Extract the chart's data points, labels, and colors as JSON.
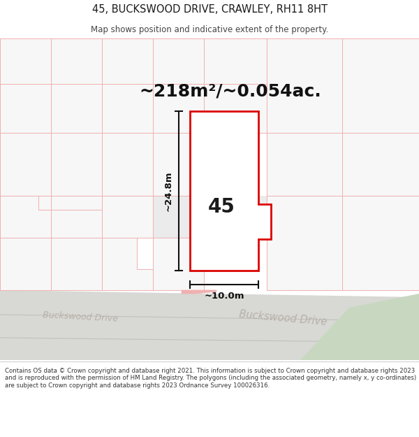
{
  "title_line1": "45, BUCKSWOOD DRIVE, CRAWLEY, RH11 8HT",
  "title_line2": "Map shows position and indicative extent of the property.",
  "area_text": "~218m²/~0.054ac.",
  "dim_height": "~24.8m",
  "dim_width": "~10.0m",
  "plot_label": "45",
  "road_label_left": "Buckswood Drive",
  "road_label_right": "Buckswood Drive",
  "footer_text": "Contains OS data © Crown copyright and database right 2021. This information is subject to Crown copyright and database rights 2023 and is reproduced with the permission of HM Land Registry. The polygons (including the associated geometry, namely x, y co-ordinates) are subject to Crown copyright and database rights 2023 Ordnance Survey 100026316.",
  "map_bg": "#fafafa",
  "map_bg_white": "#ffffff",
  "plot_fill": "#ffffff",
  "plot_edge": "#dd0000",
  "neighbor_edge": "#f0b0b0",
  "neighbor_fill": "#f7f7f7",
  "band_fill": "#ebebeb",
  "road_fill": "#d8d8d4",
  "road_line": "#c0c0bc",
  "green_fill": "#c8d8c0",
  "footer_bg": "#ffffff",
  "header_bg": "#ffffff",
  "dim_color": "#111111",
  "road_text_color": "#b8b0a8",
  "title_color": "#1a1a1a",
  "subtitle_color": "#444444"
}
